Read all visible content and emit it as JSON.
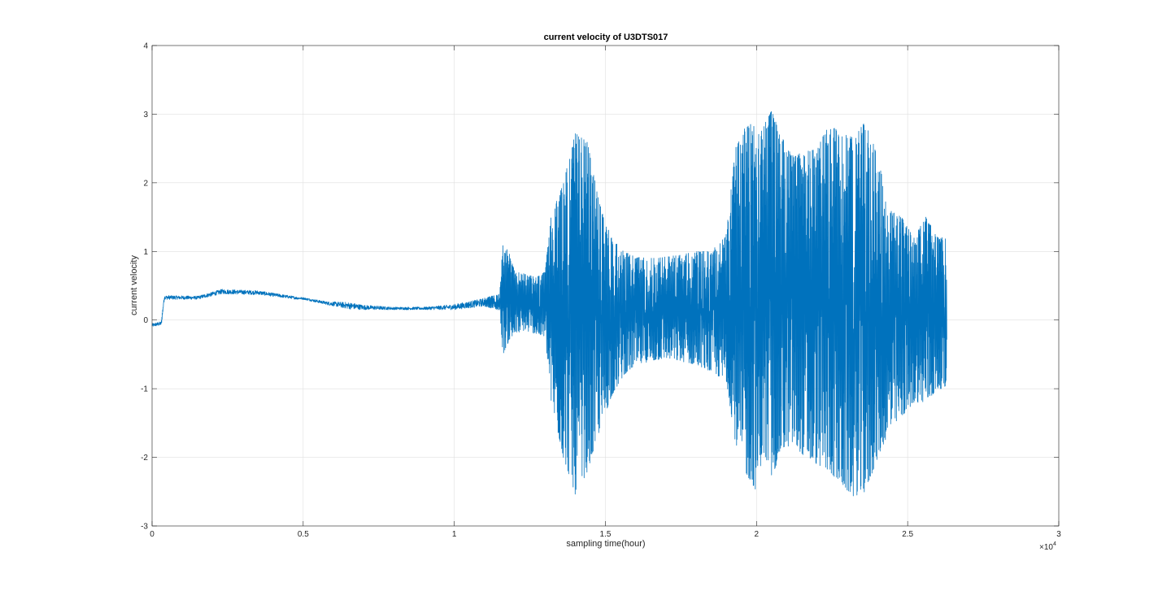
{
  "chart_data": {
    "type": "line",
    "title": "current velocity of U3DTS017",
    "xlabel": "sampling time(hour)",
    "ylabel": "current velocity",
    "xlim": [
      0,
      30000
    ],
    "ylim": [
      -3,
      4
    ],
    "xticks": [
      0,
      5000,
      10000,
      15000,
      20000,
      25000,
      30000
    ],
    "xtick_labels": [
      "0",
      "0.5",
      "1",
      "1.5",
      "2",
      "2.5",
      "3"
    ],
    "x_exponent_label": "×10",
    "x_exponent_power": "4",
    "yticks": [
      -3,
      -2,
      -1,
      0,
      1,
      2,
      3,
      4
    ],
    "ytick_labels": [
      "-3",
      "-2",
      "-1",
      "0",
      "1",
      "2",
      "3",
      "4"
    ],
    "grid": true,
    "color": "#0072BD",
    "series": [
      {
        "x_start": 0,
        "x_end": 26300,
        "envelope_x": [
          0,
          300,
          400,
          1500,
          2300,
          3500,
          4800,
          5000,
          5800,
          6500,
          7000,
          8000,
          9000,
          10000,
          11000,
          11500,
          11600,
          11800,
          12000,
          12300,
          12700,
          13000,
          13200,
          13600,
          14000,
          14400,
          14800,
          15200,
          15600,
          16000,
          16500,
          17000,
          17500,
          18000,
          18500,
          19000,
          19300,
          19600,
          20000,
          20200,
          20500,
          20800,
          21200,
          21600,
          22000,
          22400,
          22800,
          23200,
          23600,
          24000,
          24400,
          24800,
          25200,
          25600,
          26000,
          26300
        ],
        "upper": [
          -0.05,
          -0.02,
          0.36,
          0.35,
          0.45,
          0.43,
          0.34,
          0.33,
          0.27,
          0.26,
          0.22,
          0.19,
          0.19,
          0.23,
          0.32,
          0.38,
          1.1,
          1.0,
          0.7,
          0.68,
          0.62,
          0.7,
          1.5,
          2.0,
          2.72,
          2.6,
          1.7,
          1.2,
          1.0,
          0.92,
          0.9,
          0.92,
          0.95,
          1.0,
          1.0,
          1.25,
          2.5,
          2.8,
          3.05,
          2.8,
          3.05,
          2.7,
          2.4,
          2.45,
          2.5,
          2.85,
          2.75,
          2.65,
          2.9,
          2.4,
          1.6,
          1.5,
          1.2,
          1.5,
          1.2,
          1.2
        ],
        "lower": [
          -0.1,
          -0.08,
          0.3,
          0.3,
          0.38,
          0.37,
          0.3,
          0.3,
          0.22,
          0.16,
          0.15,
          0.15,
          0.15,
          0.15,
          0.2,
          0.14,
          -0.5,
          -0.3,
          -0.2,
          -0.15,
          -0.2,
          -0.25,
          -1.2,
          -2.0,
          -2.55,
          -2.2,
          -1.6,
          -1.1,
          -0.8,
          -0.65,
          -0.6,
          -0.55,
          -0.6,
          -0.65,
          -0.75,
          -0.9,
          -1.8,
          -2.2,
          -2.5,
          -1.9,
          -2.3,
          -1.9,
          -1.8,
          -2.0,
          -2.1,
          -2.2,
          -2.4,
          -2.57,
          -2.5,
          -2.0,
          -1.6,
          -1.4,
          -1.2,
          -1.2,
          -1.0,
          -1.0
        ]
      }
    ]
  }
}
